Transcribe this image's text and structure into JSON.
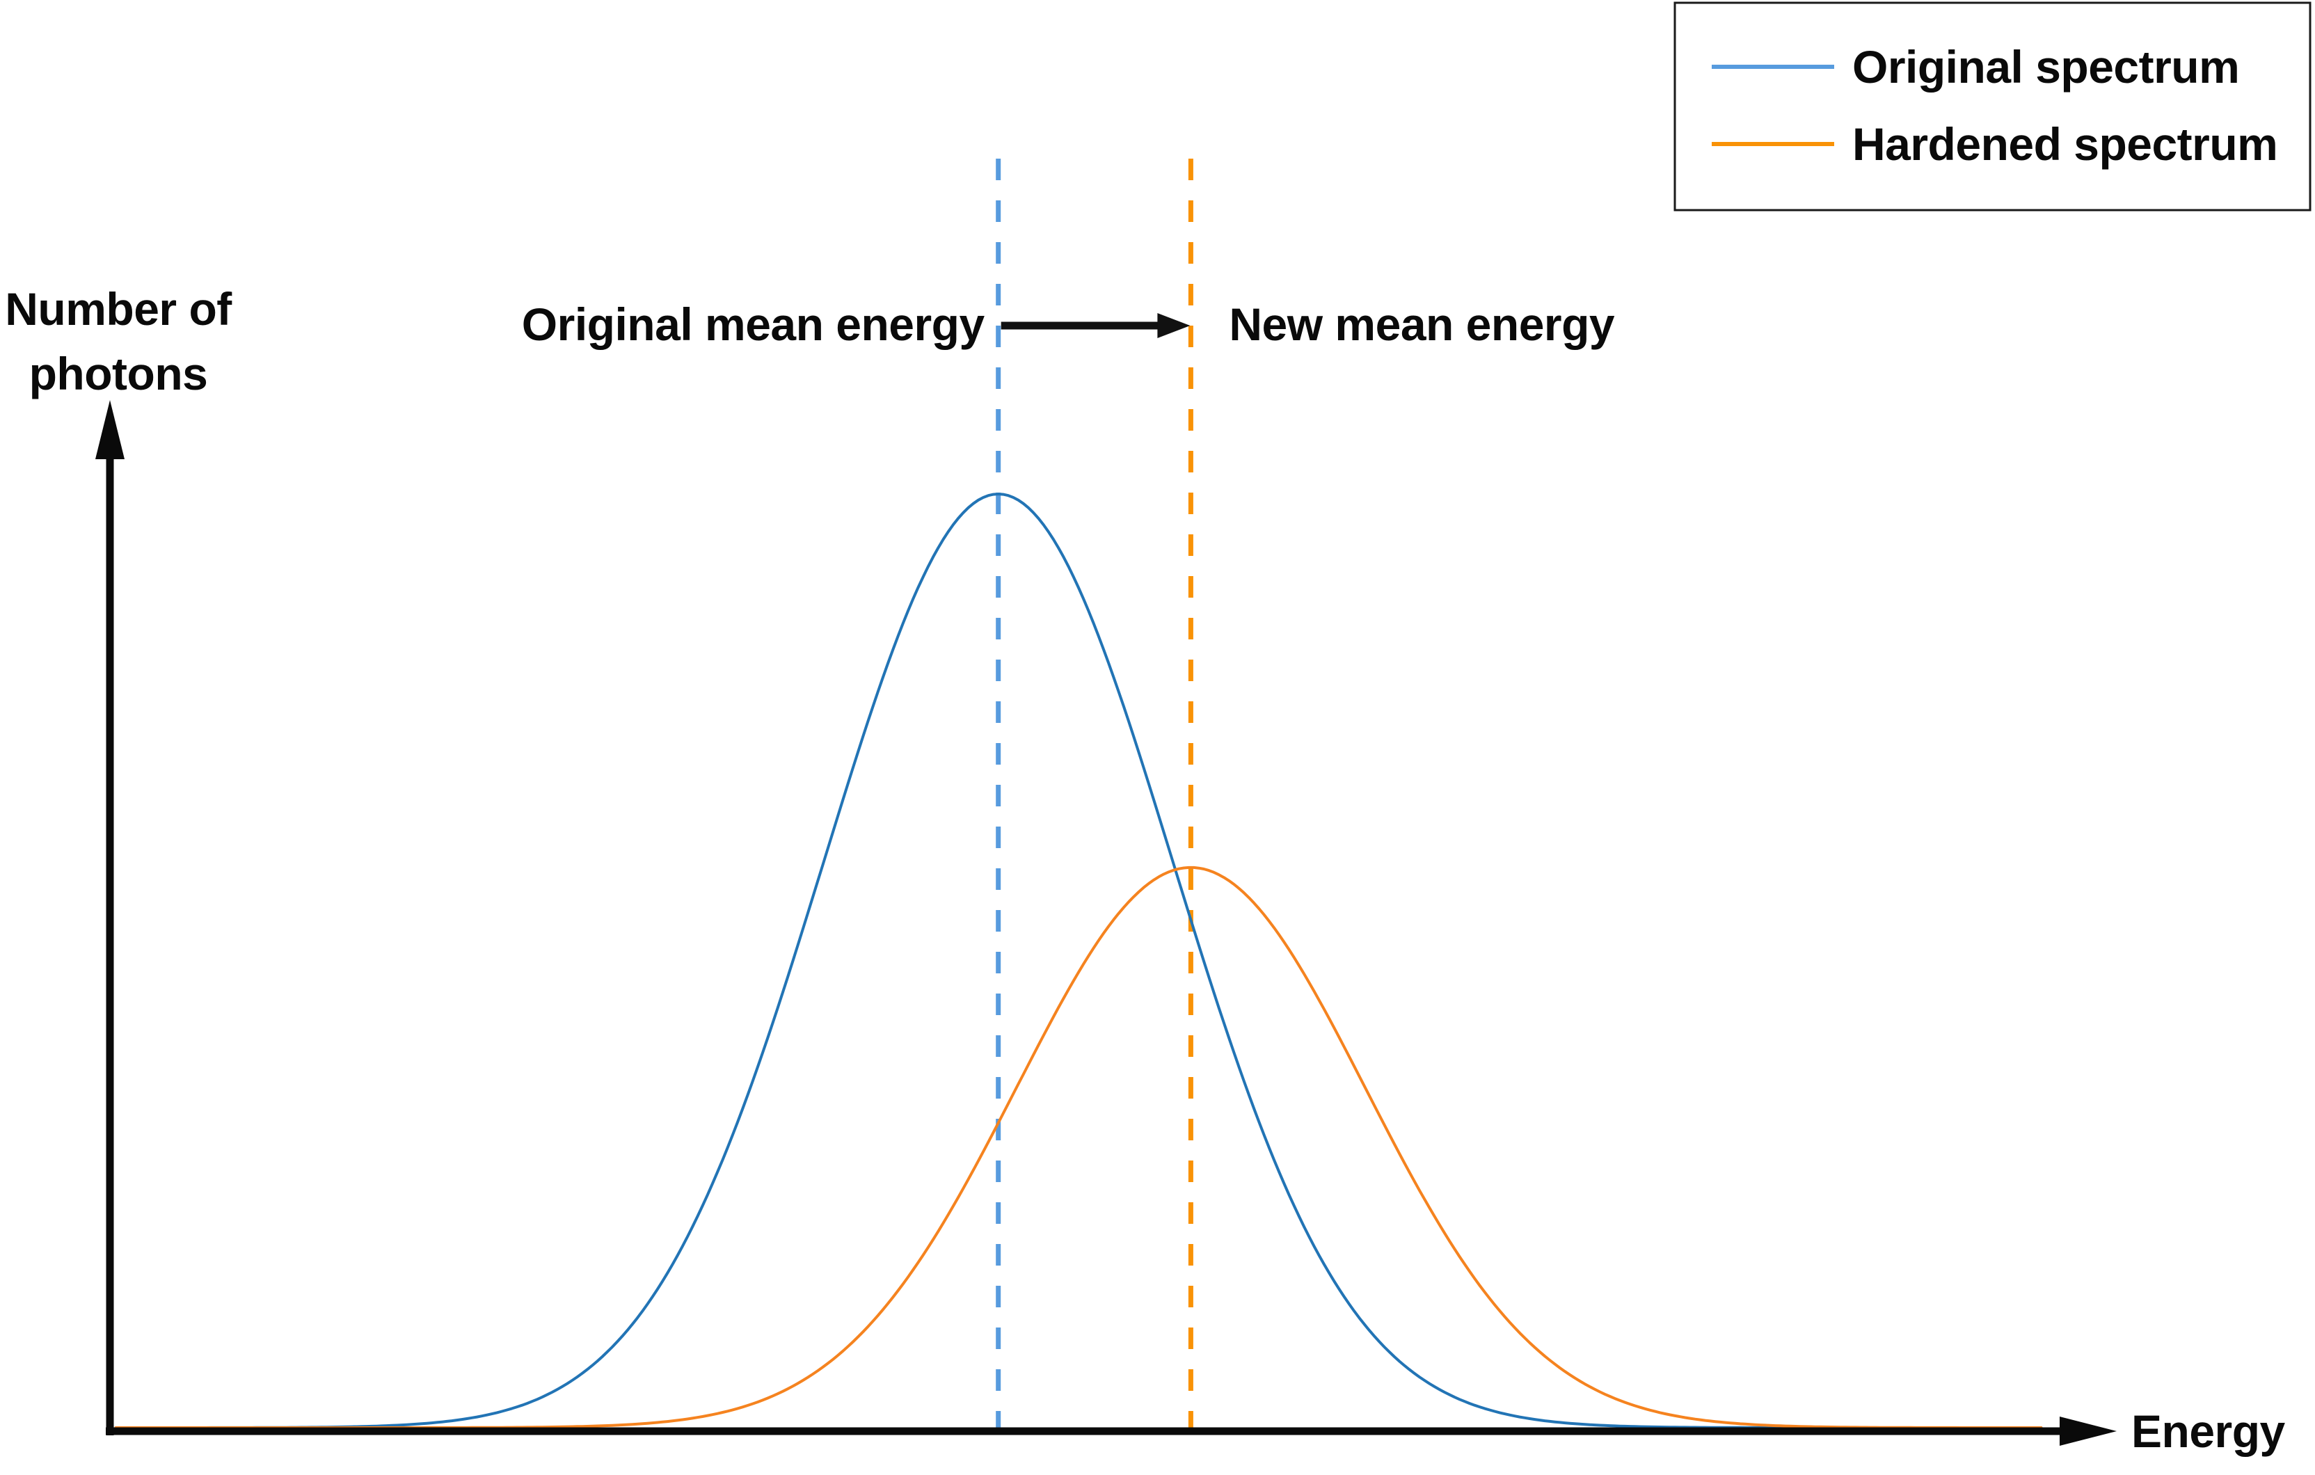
{
  "figure": {
    "background": "#ffffff",
    "ylabel_line1": "Number of",
    "ylabel_line2": "photons",
    "xlabel": "Energy",
    "annotation_left": "Original mean energy",
    "annotation_right": "New mean energy"
  },
  "legend": {
    "position": "top-right",
    "entries": [
      {
        "label": "Original spectrum",
        "color": "#579BDE"
      },
      {
        "label": "Hardened spectrum",
        "color": "#F99206"
      }
    ]
  },
  "colors": {
    "axis": "#0a0a0a",
    "text": "#0a0a0a",
    "original_curve": "#2274B5",
    "hardened_curve": "#F5831F",
    "original_mean_dash": "#579BDE",
    "new_mean_dash": "#F99206",
    "shift_arrow": "#111111"
  },
  "chart_data": {
    "type": "line",
    "subtype": "gaussian-sketch",
    "title": "",
    "xlabel": "Energy",
    "ylabel": "Number of photons",
    "x_axis": {
      "range_units": [
        0,
        100
      ],
      "tick_labels": "none (qualitative sketch)"
    },
    "y_axis": {
      "range_units": [
        0,
        1.1
      ],
      "tick_labels": "none (qualitative sketch)"
    },
    "grid": false,
    "legend_position": "top-right",
    "series": [
      {
        "name": "Original spectrum",
        "curve": "gaussian",
        "mean": 44.3,
        "sigma": 8.7,
        "peak_height": 1.0,
        "color": "#2274B5"
      },
      {
        "name": "Hardened spectrum",
        "curve": "gaussian",
        "mean": 53.9,
        "sigma": 8.7,
        "peak_height": 0.6,
        "color": "#F5831F"
      }
    ],
    "mean_lines": [
      {
        "label": "Original mean energy",
        "x": 44.3,
        "style": "dashed",
        "color": "#579BDE"
      },
      {
        "label": "New mean energy",
        "x": 53.9,
        "style": "dashed",
        "color": "#F99206"
      }
    ],
    "shift_arrow": {
      "from_x": 44.3,
      "to_x": 53.9,
      "color": "#111111",
      "meaning": "mean energy shifts higher after beam hardening"
    }
  }
}
